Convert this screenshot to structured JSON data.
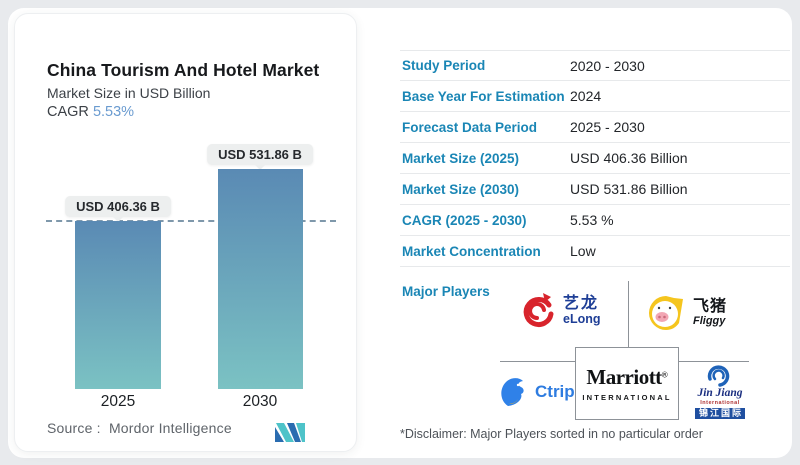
{
  "left_card": {
    "title": "China Tourism And Hotel Market",
    "subtitle": "Market Size in USD Billion",
    "cagr_label": "CAGR",
    "cagr_value": "5.53%",
    "source_label": "Source :",
    "source_value": "Mordor Intelligence"
  },
  "chart_data": {
    "type": "bar",
    "categories": [
      "2025",
      "2030"
    ],
    "values": [
      406.36,
      531.86
    ],
    "bar_labels": [
      "USD 406.36 B",
      "USD 531.86 B"
    ],
    "title": "China Tourism And Hotel Market",
    "ylabel": "Market Size in USD Billion",
    "ylim": [
      0,
      531.86
    ],
    "reference_line_value": 406.36,
    "grid": false,
    "legend": false,
    "bar_color_top": "#5a8ab4",
    "bar_color_bottom": "#7bc2c3"
  },
  "table": {
    "rows": [
      {
        "label": "Study Period",
        "value": "2020 - 2030"
      },
      {
        "label": "Base Year For Estimation",
        "value": "2024"
      },
      {
        "label": "Forecast Data Period",
        "value": "2025 - 2030"
      },
      {
        "label": "Market Size (2025)",
        "value": "USD 406.36 Billion"
      },
      {
        "label": "Market Size (2030)",
        "value": "USD 531.86 Billion"
      },
      {
        "label": "CAGR (2025 - 2030)",
        "value": "5.53 %"
      },
      {
        "label": "Market Concentration",
        "value": "Low"
      }
    ],
    "major_players_label": "Major Players",
    "players": {
      "elong": {
        "cn": "艺龙",
        "en": "eLong"
      },
      "fliggy": {
        "cn": "飞猪",
        "en": "Fliggy"
      },
      "ctrip": {
        "en": "Ctrip"
      },
      "marriott": {
        "word": "Marriott",
        "reg": "®",
        "sub": "INTERNATIONAL"
      },
      "jinjiang": {
        "name": "Jin Jiang",
        "intl": "International",
        "cn": "锦江国际"
      }
    },
    "disclaimer": "*Disclaimer: Major Players sorted in no particular order"
  },
  "icons": {
    "elong": "elong-dragon-swirl-icon",
    "fliggy": "fliggy-pig-icon",
    "ctrip": "ctrip-dolphin-icon",
    "jinjiang": "jinjiang-globe-icon",
    "mordor": "mordor-intelligence-logo"
  },
  "colors": {
    "label_blue": "#1a86b5",
    "cagr_blue": "#6a9bd0",
    "dashed_line": "#7f98ab",
    "page_background": "#e8eaed"
  }
}
